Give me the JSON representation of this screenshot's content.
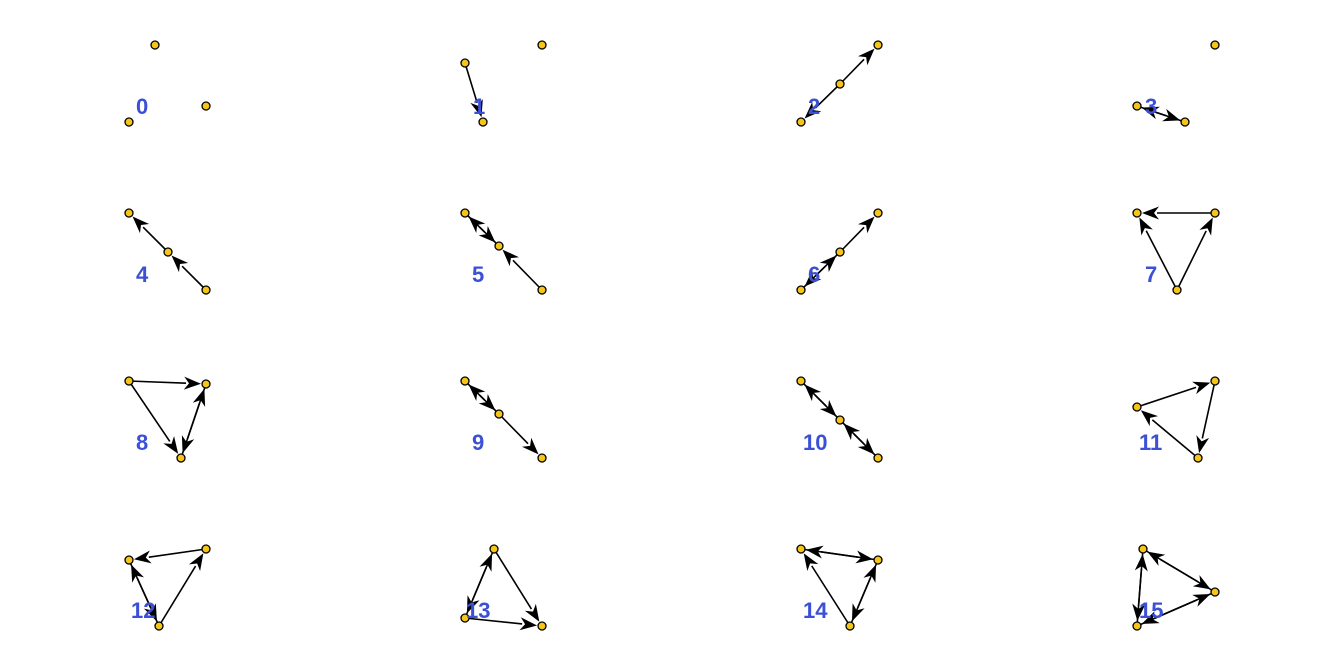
{
  "colors": {
    "node_fill": "#F5C518",
    "node_stroke": "#000000",
    "edge": "#000000",
    "label": "#3B50D6",
    "background": "#FFFFFF"
  },
  "graphs": [
    {
      "label": "0",
      "edges": []
    },
    {
      "label": "1",
      "edges": [
        [
          1,
          0
        ]
      ]
    },
    {
      "label": "2",
      "edges": [
        [
          1,
          0
        ],
        [
          1,
          2
        ]
      ]
    },
    {
      "label": "3",
      "edges": [
        [
          0,
          1
        ],
        [
          1,
          0
        ]
      ]
    },
    {
      "label": "4",
      "edges": [
        [
          2,
          1
        ],
        [
          1,
          0
        ]
      ]
    },
    {
      "label": "5",
      "edges": [
        [
          2,
          1
        ],
        [
          1,
          0
        ],
        [
          0,
          1
        ]
      ]
    },
    {
      "label": "6",
      "edges": [
        [
          0,
          1
        ],
        [
          1,
          0
        ],
        [
          1,
          2
        ]
      ]
    },
    {
      "label": "7",
      "edges": [
        [
          2,
          0
        ],
        [
          1,
          0
        ],
        [
          2,
          1
        ]
      ]
    },
    {
      "label": "8",
      "edges": [
        [
          0,
          1
        ],
        [
          0,
          2
        ],
        [
          1,
          2
        ],
        [
          2,
          1
        ]
      ]
    },
    {
      "label": "9",
      "edges": [
        [
          1,
          0
        ],
        [
          0,
          1
        ],
        [
          1,
          2
        ]
      ]
    },
    {
      "label": "10",
      "edges": [
        [
          0,
          1
        ],
        [
          1,
          0
        ],
        [
          1,
          2
        ],
        [
          2,
          1
        ]
      ]
    },
    {
      "label": "11",
      "edges": [
        [
          0,
          1
        ],
        [
          1,
          2
        ],
        [
          2,
          0
        ]
      ]
    },
    {
      "label": "12",
      "edges": [
        [
          1,
          0
        ],
        [
          2,
          1
        ],
        [
          0,
          2
        ],
        [
          2,
          0
        ]
      ]
    },
    {
      "label": "13",
      "edges": [
        [
          0,
          1
        ],
        [
          1,
          0
        ],
        [
          0,
          2
        ],
        [
          1,
          2
        ]
      ]
    },
    {
      "label": "14",
      "edges": [
        [
          0,
          1
        ],
        [
          1,
          0
        ],
        [
          2,
          1
        ],
        [
          1,
          2
        ],
        [
          2,
          0
        ]
      ]
    },
    {
      "label": "15",
      "edges": [
        [
          0,
          1
        ],
        [
          1,
          0
        ],
        [
          0,
          2
        ],
        [
          2,
          0
        ],
        [
          1,
          2
        ],
        [
          2,
          1
        ]
      ]
    }
  ]
}
